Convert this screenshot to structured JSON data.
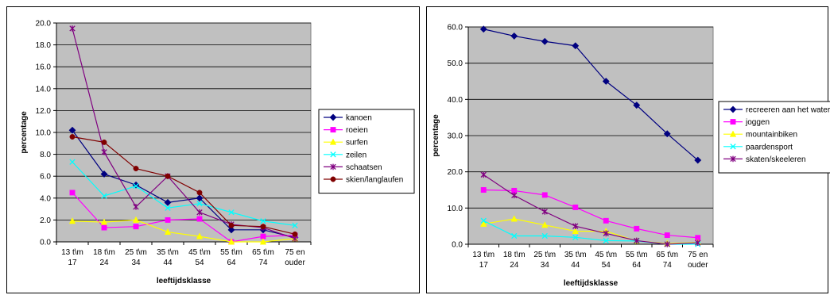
{
  "chart_data": [
    {
      "type": "line",
      "xlabel": "leeftijdsklasse",
      "ylabel": "percentage",
      "ylim": [
        0,
        20
      ],
      "ytick_step": 2,
      "ytick_format": 1,
      "grid": true,
      "legend_position": "right",
      "categories": [
        [
          "13 t\\m",
          "17"
        ],
        [
          "18 t\\m",
          "24"
        ],
        [
          "25 t\\m",
          "34"
        ],
        [
          "35 t\\m",
          "44"
        ],
        [
          "45 t\\m",
          "54"
        ],
        [
          "55 t\\m",
          "64"
        ],
        [
          "65 t\\m",
          "74"
        ],
        [
          "75 en",
          "ouder"
        ]
      ],
      "series": [
        {
          "name": "kanoen",
          "color": "#000080",
          "marker": "diamond",
          "values": [
            10.2,
            6.2,
            5.2,
            3.6,
            4.0,
            1.1,
            1.1,
            0.4
          ]
        },
        {
          "name": "roeien",
          "color": "#ff00ff",
          "marker": "square",
          "values": [
            4.5,
            1.3,
            1.4,
            2.0,
            2.1,
            0.0,
            0.5,
            0.6
          ]
        },
        {
          "name": "surfen",
          "color": "#ffff00",
          "marker": "triangle",
          "values": [
            1.9,
            1.8,
            2.0,
            0.9,
            0.5,
            0.0,
            0.0,
            0.3
          ]
        },
        {
          "name": "zeilen",
          "color": "#00ffff",
          "marker": "x",
          "values": [
            7.3,
            4.2,
            5.1,
            3.1,
            3.5,
            2.7,
            1.9,
            1.5
          ]
        },
        {
          "name": "schaatsen",
          "color": "#800080",
          "marker": "star",
          "values": [
            19.5,
            8.2,
            3.2,
            6.0,
            2.7,
            1.6,
            1.3,
            0.3
          ]
        },
        {
          "name": "skien/langlaufen",
          "color": "#800000",
          "marker": "circle",
          "values": [
            9.6,
            9.1,
            6.7,
            6.0,
            4.5,
            1.5,
            1.4,
            0.7
          ]
        }
      ]
    },
    {
      "type": "line",
      "xlabel": "leeftijdsklasse",
      "ylabel": "percentage",
      "ylim": [
        0,
        60
      ],
      "ytick_step": 10,
      "ytick_format": 1,
      "grid": true,
      "legend_position": "right",
      "categories": [
        [
          "13 t\\m",
          "17"
        ],
        [
          "18 t\\m",
          "24"
        ],
        [
          "25 t\\m",
          "34"
        ],
        [
          "35 t\\m",
          "44"
        ],
        [
          "45 t\\m",
          "54"
        ],
        [
          "55 t\\m",
          "64"
        ],
        [
          "65 t\\m",
          "74"
        ],
        [
          "75 en",
          "ouder"
        ]
      ],
      "series": [
        {
          "name": "recreeren aan het water",
          "color": "#000080",
          "marker": "diamond",
          "values": [
            59.4,
            57.5,
            56.0,
            54.8,
            45.0,
            38.4,
            30.5,
            23.2
          ]
        },
        {
          "name": "joggen",
          "color": "#ff00ff",
          "marker": "square",
          "values": [
            15.0,
            14.8,
            13.6,
            10.2,
            6.5,
            4.3,
            2.5,
            1.8
          ]
        },
        {
          "name": "mountainbiken",
          "color": "#ffff00",
          "marker": "triangle",
          "values": [
            5.6,
            7.0,
            5.3,
            3.6,
            3.6,
            0.9,
            0.2,
            0.5
          ]
        },
        {
          "name": "paardensport",
          "color": "#00ffff",
          "marker": "x",
          "values": [
            6.5,
            2.3,
            2.3,
            1.9,
            1.0,
            0.9,
            0.0,
            0.0
          ]
        },
        {
          "name": "skaten/skeeleren",
          "color": "#800080",
          "marker": "star",
          "values": [
            19.2,
            13.5,
            9.0,
            5.0,
            3.0,
            1.0,
            0.0,
            0.4
          ]
        }
      ]
    }
  ]
}
